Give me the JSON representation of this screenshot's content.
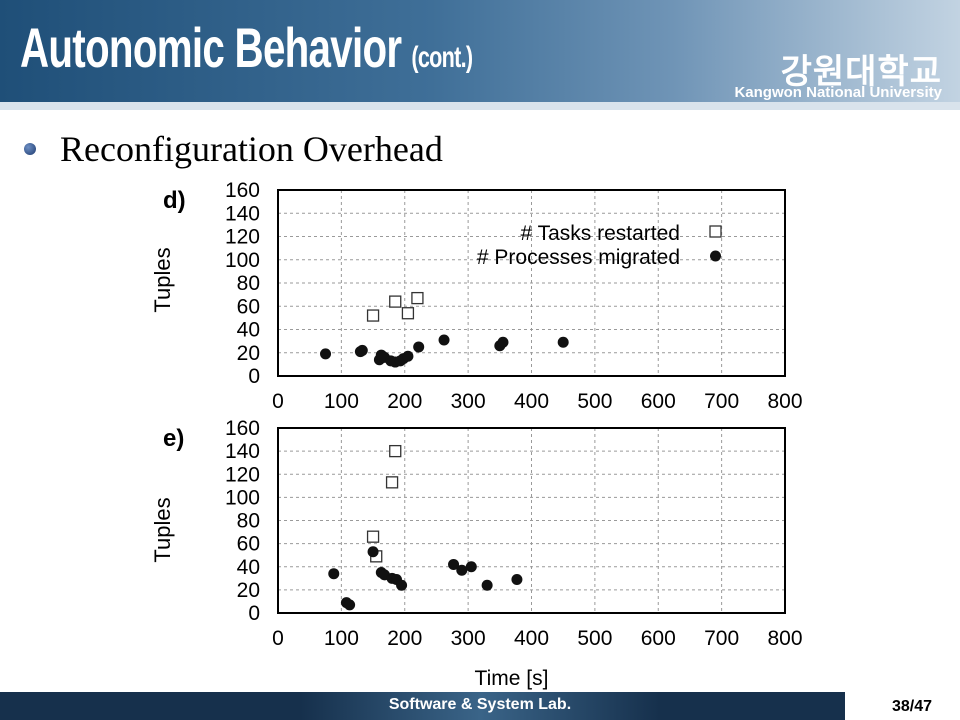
{
  "header": {
    "title": "Autonomic Behavior",
    "title_suffix": "(cont.)",
    "university_korean": "강원대학교",
    "university_english": "Kangwon National University"
  },
  "bullet": {
    "text": "Reconfiguration Overhead"
  },
  "footer": {
    "lab": "Software & System Lab.",
    "page": "38/47"
  },
  "colors": {
    "header_dark": "#1f4f78",
    "footer": "#16304c",
    "bullet": "#2a4f8a"
  },
  "chart_data": [
    {
      "type": "scatter",
      "panel_label": "d)",
      "ylabel": "Tuples",
      "xlabel": "",
      "xlim": [
        0,
        800
      ],
      "ylim": [
        0,
        160
      ],
      "xticks": [
        "0",
        "100",
        "200",
        "300",
        "400",
        "500",
        "600",
        "700",
        "800"
      ],
      "yticks": [
        "0",
        "20",
        "40",
        "60",
        "80",
        "100",
        "120",
        "140",
        "160"
      ],
      "grid": true,
      "legend": "top-right",
      "series": [
        {
          "name": "# Tasks restarted",
          "marker": "open-square",
          "points": [
            [
              150,
              52
            ],
            [
              185,
              64
            ],
            [
              205,
              54
            ],
            [
              220,
              67
            ]
          ]
        },
        {
          "name": "# Processes migrated",
          "marker": "filled-circle",
          "points": [
            [
              75,
              19
            ],
            [
              130,
              21
            ],
            [
              133,
              22
            ],
            [
              160,
              14
            ],
            [
              163,
              18
            ],
            [
              168,
              16
            ],
            [
              178,
              13
            ],
            [
              185,
              12
            ],
            [
              193,
              13
            ],
            [
              198,
              15
            ],
            [
              205,
              17
            ],
            [
              222,
              25
            ],
            [
              262,
              31
            ],
            [
              350,
              26
            ],
            [
              355,
              29
            ],
            [
              450,
              29
            ]
          ]
        }
      ]
    },
    {
      "type": "scatter",
      "panel_label": "e)",
      "ylabel": "Tuples",
      "xlabel": "Time [s]",
      "xlim": [
        0,
        800
      ],
      "ylim": [
        0,
        160
      ],
      "xticks": [
        "0",
        "100",
        "200",
        "300",
        "400",
        "500",
        "600",
        "700",
        "800"
      ],
      "yticks": [
        "0",
        "20",
        "40",
        "60",
        "80",
        "100",
        "120",
        "140",
        "160"
      ],
      "grid": true,
      "series": [
        {
          "name": "# Tasks restarted",
          "marker": "open-square",
          "points": [
            [
              150,
              66
            ],
            [
              155,
              49
            ],
            [
              180,
              113
            ],
            [
              185,
              140
            ]
          ]
        },
        {
          "name": "# Processes migrated",
          "marker": "filled-circle",
          "points": [
            [
              88,
              34
            ],
            [
              108,
              9
            ],
            [
              113,
              7
            ],
            [
              150,
              53
            ],
            [
              163,
              35
            ],
            [
              168,
              33
            ],
            [
              180,
              30
            ],
            [
              187,
              29
            ],
            [
              195,
              24
            ],
            [
              277,
              42
            ],
            [
              290,
              37
            ],
            [
              305,
              40
            ],
            [
              330,
              24
            ],
            [
              377,
              29
            ]
          ]
        }
      ]
    }
  ]
}
